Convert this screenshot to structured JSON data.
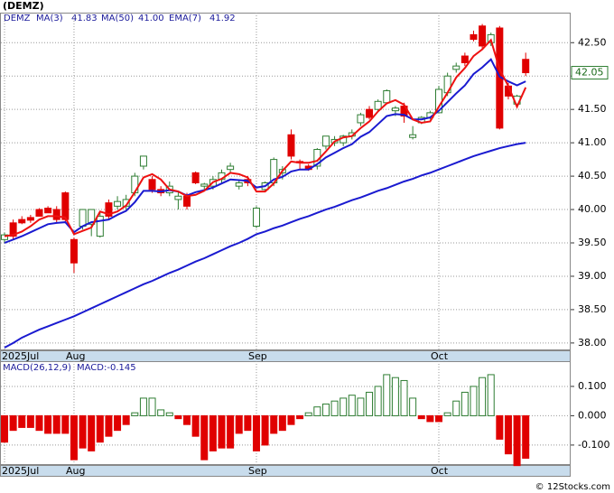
{
  "chart_data": {
    "type": "candlestick",
    "title": "(DEMZ)",
    "symbol": "DEMZ",
    "source": "© 12Stocks.com",
    "x": [
      "2025Jul",
      null,
      null,
      null,
      null,
      null,
      null,
      null,
      "Aug",
      null,
      null,
      null,
      null,
      null,
      null,
      null,
      null,
      null,
      null,
      null,
      null,
      null,
      null,
      null,
      null,
      null,
      null,
      null,
      null,
      "Sep",
      null,
      null,
      null,
      null,
      null,
      null,
      null,
      null,
      null,
      null,
      null,
      null,
      null,
      null,
      null,
      null,
      null,
      null,
      null,
      null,
      "Oct",
      null,
      null,
      null,
      null,
      null,
      null,
      null,
      null,
      null,
      null
    ],
    "open": [
      39.55,
      39.8,
      39.85,
      39.88,
      40.0,
      40.02,
      40.0,
      40.25,
      39.55,
      39.75,
      39.78,
      39.6,
      40.1,
      40.05,
      40.05,
      40.25,
      40.65,
      40.45,
      40.3,
      40.25,
      40.15,
      40.2,
      40.55,
      40.35,
      40.35,
      40.45,
      40.6,
      40.35,
      40.45,
      39.75,
      40.3,
      40.4,
      40.55,
      41.12,
      40.72,
      40.65,
      40.65,
      40.95,
      41.0,
      41.0,
      41.1,
      41.3,
      41.5,
      41.5,
      41.6,
      41.48,
      41.55,
      41.08,
      41.3,
      41.38,
      41.45,
      41.75,
      42.1,
      42.3,
      42.62,
      42.75,
      42.5,
      42.72,
      41.85,
      41.58,
      42.25
    ],
    "high": [
      39.65,
      39.85,
      39.9,
      39.92,
      40.02,
      40.05,
      40.05,
      40.27,
      39.58,
      40.0,
      40.0,
      39.98,
      40.15,
      40.2,
      40.22,
      40.55,
      40.8,
      40.5,
      40.35,
      40.42,
      40.28,
      40.25,
      40.57,
      40.4,
      40.5,
      40.6,
      40.7,
      40.45,
      40.5,
      40.05,
      40.42,
      40.78,
      40.65,
      41.2,
      40.75,
      40.68,
      40.92,
      41.1,
      41.1,
      41.12,
      41.2,
      41.45,
      41.55,
      41.65,
      41.8,
      41.55,
      41.6,
      41.25,
      41.4,
      41.48,
      41.85,
      42.05,
      42.2,
      42.35,
      42.68,
      42.78,
      42.65,
      42.75,
      41.9,
      41.72,
      42.35
    ],
    "low": [
      39.5,
      39.55,
      39.78,
      39.8,
      39.9,
      39.95,
      39.8,
      39.82,
      39.05,
      39.7,
      39.6,
      39.58,
      39.85,
      40.0,
      40.0,
      40.2,
      40.6,
      40.25,
      40.2,
      40.2,
      40.0,
      40.0,
      40.38,
      40.3,
      40.3,
      40.4,
      40.55,
      40.3,
      40.35,
      39.72,
      40.28,
      40.35,
      40.45,
      40.75,
      40.6,
      40.58,
      40.6,
      40.9,
      40.95,
      40.95,
      41.05,
      41.25,
      41.35,
      41.48,
      41.58,
      41.4,
      41.3,
      41.05,
      41.28,
      41.35,
      41.45,
      41.7,
      42.05,
      42.15,
      42.52,
      42.4,
      42.45,
      41.2,
      41.65,
      41.55,
      42.0
    ],
    "close": [
      39.62,
      39.6,
      39.8,
      39.84,
      39.9,
      39.95,
      39.85,
      39.85,
      39.2,
      40.0,
      40.0,
      39.9,
      39.9,
      40.12,
      40.15,
      40.5,
      40.8,
      40.3,
      40.25,
      40.35,
      40.2,
      40.05,
      40.4,
      40.38,
      40.45,
      40.55,
      40.65,
      40.4,
      40.4,
      40.02,
      40.4,
      40.75,
      40.6,
      40.8,
      40.7,
      40.6,
      40.9,
      41.1,
      41.05,
      41.1,
      41.15,
      41.42,
      41.38,
      41.62,
      41.78,
      41.52,
      41.4,
      41.12,
      41.38,
      41.45,
      41.8,
      42.0,
      42.15,
      42.2,
      42.55,
      42.45,
      42.62,
      41.22,
      41.7,
      41.7,
      42.05
    ],
    "up_color": "#2e7d32",
    "down_color": "#e00000",
    "ylim": [
      37.89,
      42.95
    ],
    "yticks": [
      {
        "value": 38,
        "label": "38.00"
      },
      {
        "value": 38.5,
        "label": "38.50"
      },
      {
        "value": 39,
        "label": "39.00"
      },
      {
        "value": 39.5,
        "label": "39.50"
      },
      {
        "value": 40,
        "label": "40.00"
      },
      {
        "value": 40.5,
        "label": "40.50"
      },
      {
        "value": 41,
        "label": "41.00"
      },
      {
        "value": 41.5,
        "label": "41.50"
      },
      {
        "value": 42,
        "label": "42.00"
      },
      {
        "value": 42.5,
        "label": "42.50"
      }
    ],
    "grid": true,
    "lines": [
      {
        "name": "MA(3)",
        "legend_value": "41.83",
        "color": "#ee1111",
        "values": [
          39.6,
          39.62,
          39.67,
          39.75,
          39.85,
          39.9,
          39.9,
          39.88,
          39.63,
          39.68,
          39.73,
          39.97,
          39.93,
          39.97,
          40.06,
          40.26,
          40.48,
          40.53,
          40.45,
          40.3,
          40.27,
          40.2,
          40.22,
          40.28,
          40.41,
          40.46,
          40.55,
          40.53,
          40.48,
          40.27,
          40.27,
          40.39,
          40.58,
          40.72,
          40.7,
          40.7,
          40.73,
          40.87,
          41.02,
          41.08,
          41.1,
          41.22,
          41.32,
          41.47,
          41.59,
          41.64,
          41.57,
          41.35,
          41.3,
          41.32,
          41.54,
          41.75,
          41.98,
          42.12,
          42.3,
          42.4,
          42.54,
          42.1,
          41.85,
          41.54,
          41.83
        ]
      },
      {
        "name": "MA(50)",
        "legend_value": "41.00",
        "color": "#1a1ad0",
        "values": [
          37.93,
          38.0,
          38.08,
          38.14,
          38.2,
          38.25,
          38.3,
          38.35,
          38.4,
          38.46,
          38.52,
          38.58,
          38.64,
          38.7,
          38.76,
          38.82,
          38.88,
          38.93,
          38.99,
          39.05,
          39.1,
          39.16,
          39.22,
          39.27,
          39.33,
          39.39,
          39.45,
          39.5,
          39.56,
          39.63,
          39.67,
          39.72,
          39.76,
          39.81,
          39.86,
          39.9,
          39.95,
          40.0,
          40.04,
          40.09,
          40.14,
          40.18,
          40.23,
          40.28,
          40.32,
          40.37,
          40.42,
          40.46,
          40.51,
          40.55,
          40.6,
          40.65,
          40.7,
          40.75,
          40.8,
          40.84,
          40.88,
          40.92,
          40.95,
          40.98,
          41.0
        ]
      },
      {
        "name": "EMA(7)",
        "legend_value": "41.92",
        "color": "#1a1ad0",
        "values": [
          39.5,
          39.55,
          39.6,
          39.66,
          39.72,
          39.78,
          39.8,
          39.81,
          39.66,
          39.75,
          39.81,
          39.83,
          39.85,
          39.92,
          39.98,
          40.11,
          40.28,
          40.28,
          40.27,
          40.29,
          40.27,
          40.21,
          40.26,
          40.29,
          40.33,
          40.39,
          40.45,
          40.44,
          40.43,
          40.33,
          40.35,
          40.45,
          40.49,
          40.57,
          40.6,
          40.6,
          40.68,
          40.78,
          40.85,
          40.92,
          40.98,
          41.09,
          41.16,
          41.28,
          41.4,
          41.43,
          41.42,
          41.35,
          41.35,
          41.38,
          41.48,
          41.61,
          41.74,
          41.86,
          42.03,
          42.13,
          42.25,
          41.99,
          41.92,
          41.86,
          41.92
        ]
      }
    ],
    "macd": {
      "title": "MACD(26,12,9)",
      "legend": "MACD:-0.145",
      "up_color": "#2e7d32",
      "down_color": "#e00000",
      "values": [
        -0.09,
        -0.05,
        -0.04,
        -0.04,
        -0.05,
        -0.06,
        -0.06,
        -0.06,
        -0.15,
        -0.11,
        -0.12,
        -0.09,
        -0.07,
        -0.05,
        -0.03,
        0.01,
        0.06,
        0.06,
        0.02,
        0.01,
        -0.01,
        -0.03,
        -0.07,
        -0.15,
        -0.12,
        -0.11,
        -0.11,
        -0.06,
        -0.05,
        -0.12,
        -0.1,
        -0.06,
        -0.05,
        -0.03,
        -0.01,
        0.01,
        0.03,
        0.04,
        0.05,
        0.06,
        0.07,
        0.06,
        0.08,
        0.1,
        0.14,
        0.13,
        0.12,
        0.06,
        -0.01,
        -0.02,
        -0.02,
        0.01,
        0.05,
        0.08,
        0.1,
        0.13,
        0.14,
        -0.08,
        -0.13,
        -0.17,
        -0.145
      ],
      "ylim": [
        -0.168,
        0.186
      ],
      "yticks": [
        {
          "value": 0.1,
          "label": "0.100"
        },
        {
          "value": 0,
          "label": "0.000"
        },
        {
          "value": -0.1,
          "label": "-0.100"
        }
      ]
    }
  }
}
